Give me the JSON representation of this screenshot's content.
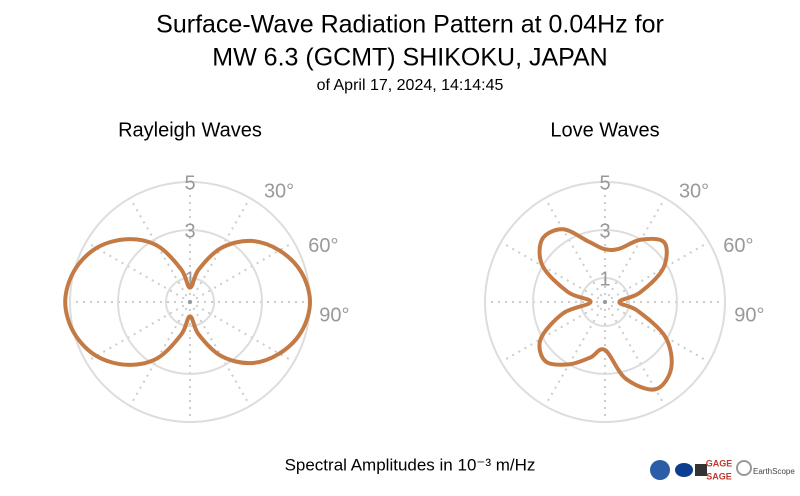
{
  "title": [
    "Surface-Wave Radiation Pattern at 0.04Hz for",
    "MW 6.3 (GCMT) SHIKOKU, JAPAN"
  ],
  "subtitle": "of April 17, 2024, 14:14:45",
  "chart_data": [
    {
      "type": "polar",
      "title": "Rayleigh Waves",
      "color": "#c47a45",
      "theta": [
        0,
        15,
        30,
        45,
        60,
        75,
        90,
        105,
        120,
        135,
        150,
        165,
        180,
        195,
        210,
        225,
        240,
        255,
        270,
        285,
        300,
        315,
        330,
        345,
        360
      ],
      "values": [
        0.6,
        1.4,
        2.6,
        3.6,
        4.3,
        4.8,
        5.0,
        4.8,
        4.3,
        3.6,
        2.6,
        1.4,
        0.6,
        1.4,
        2.7,
        3.7,
        4.5,
        5.0,
        5.2,
        5.0,
        4.5,
        3.7,
        2.7,
        1.4,
        0.6
      ],
      "rlim": [
        0,
        5
      ],
      "rticks": [
        1,
        3,
        5
      ],
      "thetaticks": [
        {
          "value": 30,
          "label": "30°"
        },
        {
          "value": 60,
          "label": "60°"
        },
        {
          "value": 90,
          "label": "90°"
        }
      ],
      "grid": true
    },
    {
      "type": "polar",
      "title": "Love Waves",
      "color": "#c47a45",
      "theta": [
        0,
        15,
        30,
        45,
        60,
        75,
        90,
        105,
        120,
        135,
        150,
        165,
        180,
        195,
        210,
        225,
        240,
        255,
        270,
        285,
        300,
        315,
        330,
        345,
        360
      ],
      "values": [
        2.2,
        2.3,
        3.0,
        3.5,
        2.8,
        1.5,
        0.6,
        1.4,
        2.9,
        3.9,
        4.2,
        3.3,
        2.0,
        2.4,
        3.0,
        3.5,
        3.1,
        1.8,
        0.6,
        1.6,
        3.0,
        3.7,
        3.5,
        2.6,
        2.2
      ],
      "rlim": [
        0,
        5
      ],
      "rticks": [
        1,
        3,
        5
      ],
      "thetaticks": [
        {
          "value": 30,
          "label": "30°"
        },
        {
          "value": 60,
          "label": "60°"
        },
        {
          "value": 90,
          "label": "90°"
        }
      ],
      "grid": true
    }
  ],
  "footer": "Spectral Amplitudes in 10⁻³ m/Hz",
  "logos": [
    "GAGE",
    "SAGE",
    "EarthScope"
  ]
}
